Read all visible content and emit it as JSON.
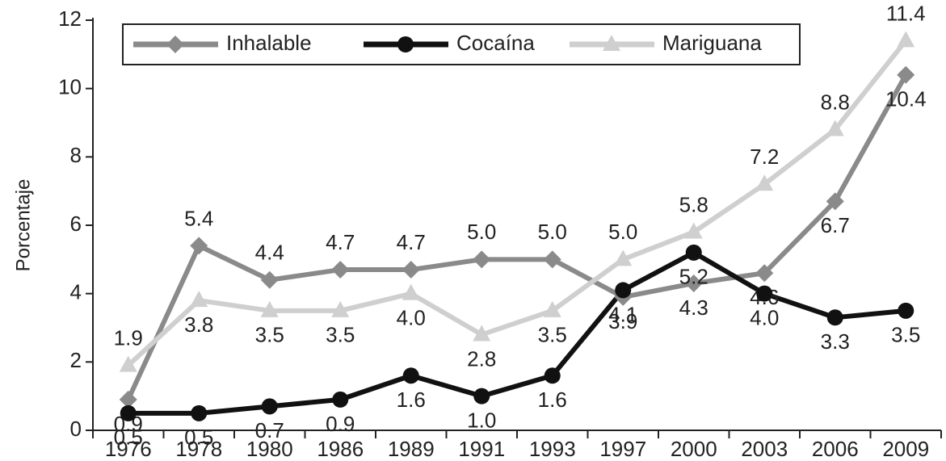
{
  "chart_data": {
    "type": "line",
    "y_label": "Porcentaje",
    "categories": [
      "1976",
      "1978",
      "1980",
      "1986",
      "1989",
      "1991",
      "1993",
      "1997",
      "2000",
      "2003",
      "2006",
      "2009"
    ],
    "series": [
      {
        "name": "Inhalable",
        "color": "#8a8a8a",
        "marker": "diamond",
        "values": [
          0.9,
          5.4,
          4.4,
          4.7,
          4.7,
          5.0,
          5.0,
          3.9,
          4.3,
          4.6,
          6.7,
          10.4
        ],
        "value_labels": [
          "0.9",
          "5.4",
          "4.4",
          "4.7",
          "4.7",
          "5.0",
          "5.0",
          "3.9",
          "4.3",
          "4.6",
          "6.7",
          "10.4"
        ]
      },
      {
        "name": "Cocaína",
        "color": "#111111",
        "marker": "circle",
        "values": [
          0.5,
          0.5,
          0.7,
          0.9,
          1.6,
          1.0,
          1.6,
          4.1,
          5.2,
          4.0,
          3.3,
          3.5
        ],
        "value_labels": [
          "0.5",
          "0.5",
          "0.7",
          "0.9",
          "1.6",
          "1.0",
          "1.6",
          "4.1",
          "5.2",
          "4.0",
          "3.3",
          "3.5"
        ]
      },
      {
        "name": "Mariguana",
        "color": "#cfcfcf",
        "marker": "triangle",
        "values": [
          1.9,
          3.8,
          3.5,
          3.5,
          4.0,
          2.8,
          3.5,
          5.0,
          5.8,
          7.2,
          8.8,
          11.4
        ],
        "value_labels": [
          "1.9",
          "3.8",
          "3.5",
          "3.5",
          "4.0",
          "2.8",
          "3.5",
          "5.0",
          "5.8",
          "7.2",
          "8.8",
          "11.4"
        ]
      }
    ],
    "ylim": [
      0,
      12
    ],
    "yticks": [
      0,
      2,
      4,
      6,
      8,
      10,
      12
    ],
    "grid": false,
    "legend": "top-left"
  }
}
